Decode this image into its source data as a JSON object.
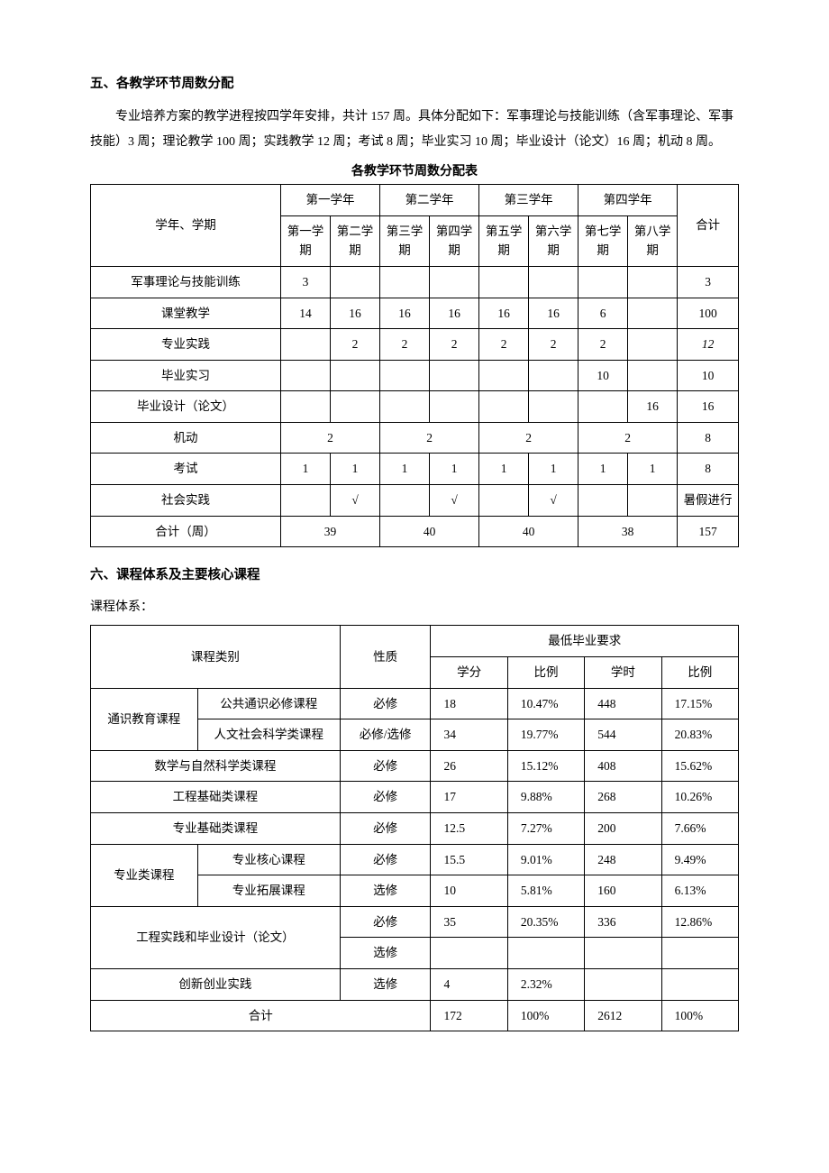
{
  "section5": {
    "heading": "五、各教学环节周数分配",
    "paragraph": "专业培养方案的教学进程按四学年安排，共计 157 周。具体分配如下：军事理论与技能训练（含军事理论、军事技能）3 周；理论教学 100 周；实践教学 12 周；考试 8 周；毕业实习 10 周；毕业设计（论文）16 周；机动 8 周。",
    "table_title": "各教学环节周数分配表",
    "header": {
      "row_label": "学年、学期",
      "years": [
        "第一学年",
        "第二学年",
        "第三学年",
        "第四学年"
      ],
      "semesters": [
        "第一学期",
        "第二学期",
        "第三学期",
        "第四学期",
        "第五学期",
        "第六学期",
        "第七学期",
        "第八学期"
      ],
      "total": "合计"
    },
    "rows": {
      "military": {
        "label": "军事理论与技能训练",
        "c": [
          "3",
          "",
          "",
          "",
          "",
          "",
          "",
          ""
        ],
        "total": "3"
      },
      "classroom": {
        "label": "课堂教学",
        "c": [
          "14",
          "16",
          "16",
          "16",
          "16",
          "16",
          "6",
          ""
        ],
        "total": "100"
      },
      "practice": {
        "label": "专业实践",
        "c": [
          "",
          "2",
          "2",
          "2",
          "2",
          "2",
          "2",
          ""
        ],
        "total": "12",
        "total_italic": true
      },
      "internship": {
        "label": "毕业实习",
        "c": [
          "",
          "",
          "",
          "",
          "",
          "",
          "10",
          ""
        ],
        "total": "10"
      },
      "thesis": {
        "label": "毕业设计（论文）",
        "c": [
          "",
          "",
          "",
          "",
          "",
          "",
          "",
          "16"
        ],
        "total": "16"
      },
      "flex": {
        "label": "机动",
        "merged": [
          "2",
          "2",
          "2",
          "2"
        ],
        "total": "8"
      },
      "exam": {
        "label": "考试",
        "c": [
          "1",
          "1",
          "1",
          "1",
          "1",
          "1",
          "1",
          "1"
        ],
        "total": "8"
      },
      "social": {
        "label": "社会实践",
        "c": [
          "",
          "√",
          "",
          "√",
          "",
          "√",
          "",
          ""
        ],
        "total": "暑假进行"
      },
      "sum": {
        "label": "合计（周）",
        "merged": [
          "39",
          "40",
          "40",
          "38"
        ],
        "total": "157"
      }
    }
  },
  "section6": {
    "heading": "六、课程体系及主要核心课程",
    "subheading": "课程体系：",
    "header": {
      "category": "课程类别",
      "nature": "性质",
      "req_group": "最低毕业要求",
      "req_cols": [
        "学分",
        "比例",
        "学时",
        "比例"
      ]
    },
    "rows": {
      "r1": {
        "cat1": "通识教育课程",
        "cat2": "公共通识必修课程",
        "nature": "必修",
        "v": [
          "18",
          "10.47%",
          "448",
          "17.15%"
        ]
      },
      "r2": {
        "cat2": "人文社会科学类课程",
        "nature": "必修/选修",
        "v": [
          "34",
          "19.77%",
          "544",
          "20.83%"
        ]
      },
      "r3": {
        "catfull": "数学与自然科学类课程",
        "nature": "必修",
        "v": [
          "26",
          "15.12%",
          "408",
          "15.62%"
        ]
      },
      "r4": {
        "catfull": "工程基础类课程",
        "nature": "必修",
        "v": [
          "17",
          "9.88%",
          "268",
          "10.26%"
        ]
      },
      "r5": {
        "catfull": "专业基础类课程",
        "nature": "必修",
        "v": [
          "12.5",
          "7.27%",
          "200",
          "7.66%"
        ]
      },
      "r6": {
        "cat1": "专业类课程",
        "cat2": "专业核心课程",
        "nature": "必修",
        "v": [
          "15.5",
          "9.01%",
          "248",
          "9.49%"
        ]
      },
      "r7": {
        "cat2": "专业拓展课程",
        "nature": "选修",
        "v": [
          "10",
          "5.81%",
          "160",
          "6.13%"
        ]
      },
      "r8": {
        "catfull": "工程实践和毕业设计（论文）",
        "nature": "必修",
        "v": [
          "35",
          "20.35%",
          "336",
          "12.86%"
        ]
      },
      "r9": {
        "nature": "选修",
        "v": [
          "",
          "",
          "",
          ""
        ]
      },
      "r10": {
        "catfull": "创新创业实践",
        "nature": "选修",
        "v": [
          "4",
          "2.32%",
          "",
          ""
        ]
      },
      "r11": {
        "catfull": "合计",
        "v": [
          "172",
          "100%",
          "2612",
          "100%"
        ]
      }
    }
  },
  "style": {
    "font_family": "SimSun",
    "text_color": "#000000",
    "background_color": "#ffffff",
    "border_color": "#000000",
    "body_fontsize": 14,
    "table_fontsize": 13.5
  }
}
